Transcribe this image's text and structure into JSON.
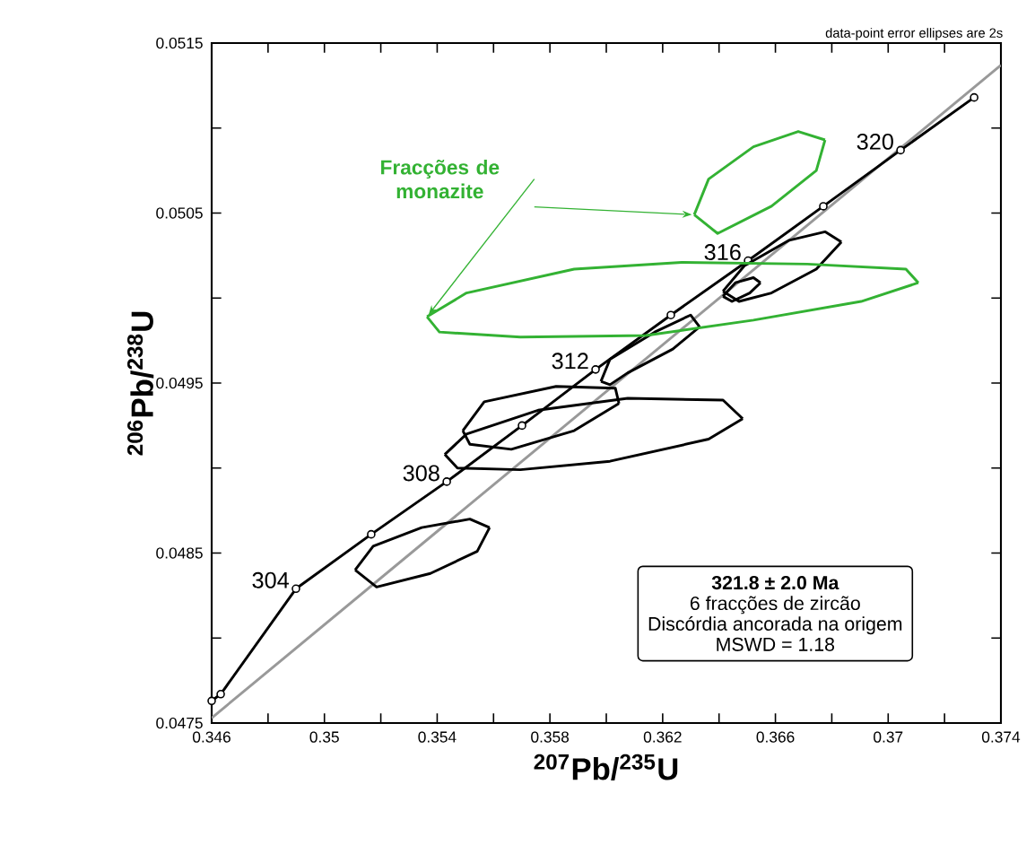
{
  "chart_data": {
    "type": "line",
    "xlabel": "$^{207}$Pb/$^{235}$U",
    "ylabel": "$^{206}$Pb/$^{238}$U",
    "xlim": [
      0.346,
      0.374
    ],
    "ylim": [
      0.0475,
      0.0515
    ],
    "xticks": [
      0.346,
      {
        "value": 0.348,
        "label": null
      },
      0.35,
      {
        "value": 0.352,
        "label": null
      },
      0.354,
      {
        "value": 0.356,
        "label": null
      },
      0.358,
      {
        "value": 0.36,
        "label": null
      },
      0.362,
      {
        "value": 0.364,
        "label": null
      },
      0.366,
      {
        "value": 0.368,
        "label": null
      },
      0.37,
      {
        "value": 0.372,
        "label": null
      },
      0.374
    ],
    "yticks": [
      0.0475,
      {
        "value": 0.048,
        "label": null
      },
      0.0485,
      {
        "value": 0.049,
        "label": null
      },
      0.0495,
      {
        "value": 0.05,
        "label": null
      },
      0.0505,
      {
        "value": 0.051,
        "label": null
      },
      0.0515
    ],
    "series": [
      {
        "color": "#999999",
        "marker": "none",
        "x": [
          0.346,
          0.374
        ],
        "values": [
          0.04753,
          0.05137
        ]
      },
      {
        "color": "#000000",
        "marker": "circle",
        "x": [
          0.346,
          0.34632,
          0.34899,
          0.35166,
          0.35434,
          0.35701,
          0.35962,
          0.36229,
          0.36503,
          0.3677,
          0.37044,
          0.37305
        ],
        "values": [
          0.04763,
          0.04767,
          0.04829,
          0.04861,
          0.04892,
          0.04925,
          0.04958,
          0.0499,
          0.05022,
          0.05054,
          0.05087,
          0.05118
        ]
      },
      {
        "color": "#000000",
        "marker": "none",
        "x": [
          0.35109,
          0.35173,
          0.35345,
          0.35516,
          0.35586
        ],
        "values": [
          0.0484,
          0.04854,
          0.04865,
          0.0487,
          0.04865
        ]
      },
      {
        "color": "#000000",
        "marker": "none",
        "x": [
          0.35109,
          0.35185,
          0.35376,
          0.35542,
          0.35586
        ],
        "values": [
          0.0484,
          0.0483,
          0.04838,
          0.04851,
          0.04865
        ]
      },
      {
        "color": "#000000",
        "marker": "none",
        "x": [
          0.35427,
          0.35504,
          0.35758,
          0.36076,
          0.36414,
          0.36484
        ],
        "values": [
          0.04908,
          0.0492,
          0.04934,
          0.04941,
          0.0494,
          0.04929
        ]
      },
      {
        "color": "#000000",
        "marker": "none",
        "x": [
          0.35427,
          0.35472,
          0.35695,
          0.36013,
          0.36363,
          0.36484
        ],
        "values": [
          0.04908,
          0.049,
          0.04899,
          0.04904,
          0.04917,
          0.04929
        ]
      },
      {
        "color": "#000000",
        "marker": "none",
        "x": [
          0.35491,
          0.35567,
          0.35822,
          0.36032,
          0.36045
        ],
        "values": [
          0.04922,
          0.04939,
          0.04948,
          0.04947,
          0.04938
        ]
      },
      {
        "color": "#000000",
        "marker": "none",
        "x": [
          0.35491,
          0.35516,
          0.35663,
          0.35886,
          0.36045
        ],
        "values": [
          0.04922,
          0.04914,
          0.04911,
          0.04922,
          0.04938
        ]
      },
      {
        "color": "#000000",
        "marker": "none",
        "x": [
          0.35981,
          0.36013,
          0.36172,
          0.36299,
          0.36331
        ],
        "values": [
          0.04951,
          0.04964,
          0.0498,
          0.0499,
          0.04983
        ]
      },
      {
        "color": "#000000",
        "marker": "none",
        "x": [
          0.35981,
          0.36013,
          0.36076,
          0.36236,
          0.36331
        ],
        "values": [
          0.04951,
          0.04949,
          0.04956,
          0.0497,
          0.04983
        ]
      },
      {
        "color": "#000000",
        "marker": "none",
        "x": [
          0.36414,
          0.36458,
          0.36522,
          0.36547
        ],
        "values": [
          0.05001,
          0.05009,
          0.05012,
          0.05009
        ]
      },
      {
        "color": "#000000",
        "marker": "none",
        "x": [
          0.36414,
          0.36446,
          0.36509,
          0.36547
        ],
        "values": [
          0.05001,
          0.04998,
          0.05003,
          0.05009
        ]
      },
      {
        "color": "#000000",
        "marker": "none",
        "x": [
          0.36414,
          0.3649,
          0.36649,
          0.36776,
          0.36834
        ],
        "values": [
          0.05004,
          0.05019,
          0.05034,
          0.05039,
          0.05033
        ]
      },
      {
        "color": "#000000",
        "marker": "none",
        "x": [
          0.36414,
          0.36471,
          0.36586,
          0.36745,
          0.36834
        ],
        "values": [
          0.05004,
          0.04998,
          0.05003,
          0.05017,
          0.05033
        ]
      },
      {
        "color": "#33b233",
        "marker": "none",
        "x": [
          0.35364,
          0.35504,
          0.35886,
          0.36267,
          0.36713,
          0.37063,
          0.37107
        ],
        "values": [
          0.04989,
          0.05003,
          0.05017,
          0.05021,
          0.0502,
          0.05017,
          0.05009
        ]
      },
      {
        "color": "#33b233",
        "marker": "none",
        "x": [
          0.35364,
          0.35408,
          0.35695,
          0.3614,
          0.36522,
          0.36904,
          0.37107
        ],
        "values": [
          0.04989,
          0.0498,
          0.04977,
          0.04978,
          0.04987,
          0.04998,
          0.05009
        ]
      },
      {
        "color": "#33b233",
        "marker": "none",
        "x": [
          0.36312,
          0.36363,
          0.36522,
          0.36681,
          0.36776
        ],
        "values": [
          0.05049,
          0.0507,
          0.05089,
          0.05098,
          0.05093
        ]
      },
      {
        "color": "#33b233",
        "marker": "none",
        "x": [
          0.36312,
          0.36395,
          0.36586,
          0.36745,
          0.36776
        ],
        "values": [
          0.05049,
          0.05038,
          0.05054,
          0.05075,
          0.05093
        ]
      }
    ],
    "annotations": [
      "data-point error ellipses are 2s",
      "Fracções de monazite",
      "321.8 ± 2.0 Ma",
      "6 fracções de zircão",
      "Discórdia ancorada na origem",
      "MSWD = 1.18",
      {
        "text": "304",
        "x": 0.34899,
        "y": 0.04829
      },
      {
        "text": "308",
        "x": 0.35434,
        "y": 0.04892
      },
      {
        "text": "312",
        "x": 0.35962,
        "y": 0.04958
      },
      {
        "text": "316",
        "x": 0.36503,
        "y": 0.05022
      },
      {
        "text": "320",
        "x": 0.37044,
        "y": 0.05087
      }
    ]
  }
}
